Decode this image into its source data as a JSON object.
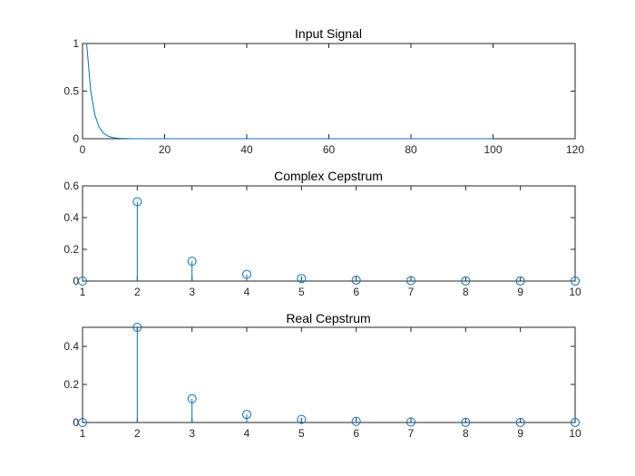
{
  "chart_data": [
    {
      "type": "line",
      "title": "Input Signal",
      "xlabel": "",
      "ylabel": "",
      "xlim": [
        0,
        120
      ],
      "ylim": [
        0,
        1
      ],
      "xticks": [
        0,
        20,
        40,
        60,
        80,
        100,
        120
      ],
      "xtick_labels": [
        "0",
        "20",
        "40",
        "60",
        "80",
        "100",
        "120"
      ],
      "yticks": [
        0,
        0.5,
        1
      ],
      "ytick_labels": [
        "0",
        "0.5",
        "1"
      ],
      "grid": false,
      "series": [
        {
          "color": "#0072bd",
          "x": [
            1,
            2,
            3,
            4,
            5,
            6,
            7,
            8,
            9,
            10,
            11,
            12,
            15,
            20,
            30,
            40,
            50,
            60,
            70,
            80,
            90,
            100
          ],
          "y": [
            1,
            0.5,
            0.25,
            0.125,
            0.0625,
            0.03125,
            0.0156,
            0.0078,
            0.0039,
            0.002,
            0.001,
            0.0005,
            0.0001,
            0,
            0,
            0,
            0,
            0,
            0,
            0,
            0,
            0
          ]
        }
      ]
    },
    {
      "type": "stem",
      "title": "Complex Cepstrum",
      "xlabel": "",
      "ylabel": "",
      "xlim": [
        1,
        10
      ],
      "ylim": [
        0,
        0.6
      ],
      "xticks": [
        1,
        2,
        3,
        4,
        5,
        6,
        7,
        8,
        9,
        10
      ],
      "xtick_labels": [
        "1",
        "2",
        "3",
        "4",
        "5",
        "6",
        "7",
        "8",
        "9",
        "10"
      ],
      "yticks": [
        0,
        0.2,
        0.4,
        0.6
      ],
      "ytick_labels": [
        "0",
        "0.2",
        "0.4",
        "0.6"
      ],
      "grid": false,
      "series": [
        {
          "color": "#0072bd",
          "x": [
            1,
            2,
            3,
            4,
            5,
            6,
            7,
            8,
            9,
            10
          ],
          "y": [
            0,
            0.5,
            0.125,
            0.042,
            0.016,
            0.006,
            0.003,
            0.001,
            0.0005,
            0.0002
          ]
        }
      ]
    },
    {
      "type": "stem",
      "title": "Real Cepstrum",
      "xlabel": "",
      "ylabel": "",
      "xlim": [
        1,
        10
      ],
      "ylim": [
        0,
        0.5
      ],
      "xticks": [
        1,
        2,
        3,
        4,
        5,
        6,
        7,
        8,
        9,
        10
      ],
      "xtick_labels": [
        "1",
        "2",
        "3",
        "4",
        "5",
        "6",
        "7",
        "8",
        "9",
        "10"
      ],
      "yticks": [
        0,
        0.2,
        0.4
      ],
      "ytick_labels": [
        "0",
        "0.2",
        "0.4"
      ],
      "grid": false,
      "series": [
        {
          "color": "#0072bd",
          "x": [
            1,
            2,
            3,
            4,
            5,
            6,
            7,
            8,
            9,
            10
          ],
          "y": [
            0,
            0.5,
            0.125,
            0.042,
            0.016,
            0.006,
            0.003,
            0.001,
            0.0005,
            0.0002
          ]
        }
      ]
    }
  ]
}
